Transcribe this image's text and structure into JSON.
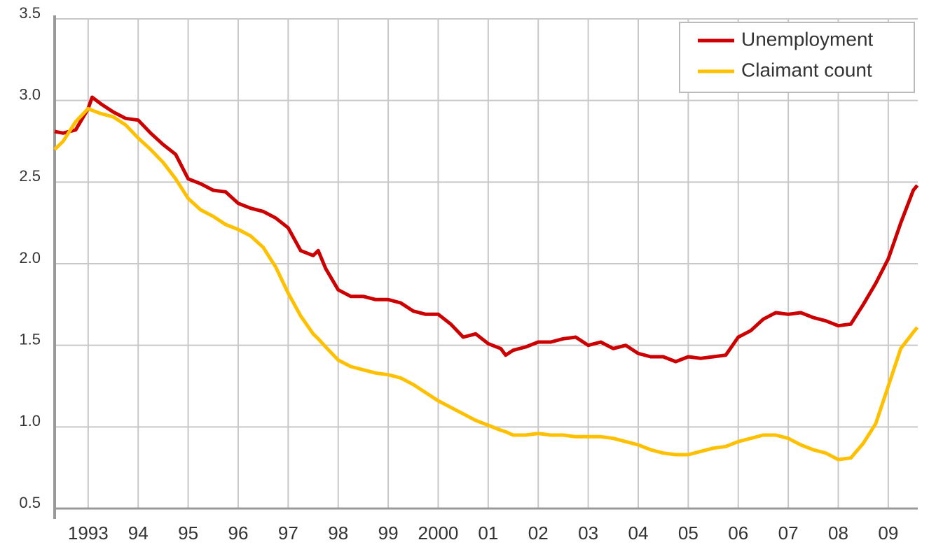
{
  "chart_data": {
    "type": "line",
    "x": [
      1992.33,
      1992.5,
      1992.75,
      1993,
      1993.08,
      1993.25,
      1993.5,
      1993.75,
      1994,
      1994.25,
      1994.5,
      1994.75,
      1995,
      1995.25,
      1995.5,
      1995.75,
      1996,
      1996.25,
      1996.5,
      1996.75,
      1997,
      1997.25,
      1997.5,
      1997.6,
      1997.75,
      1998,
      1998.25,
      1998.5,
      1998.75,
      1999,
      1999.25,
      1999.5,
      1999.75,
      2000,
      2000.25,
      2000.5,
      2000.75,
      2001,
      2001.25,
      2001.35,
      2001.5,
      2001.75,
      2002,
      2002.25,
      2002.5,
      2002.75,
      2003,
      2003.25,
      2003.5,
      2003.75,
      2004,
      2004.25,
      2004.5,
      2004.75,
      2005,
      2005.25,
      2005.5,
      2005.75,
      2006,
      2006.25,
      2006.5,
      2006.75,
      2007,
      2007.25,
      2007.5,
      2007.75,
      2008,
      2008.25,
      2008.5,
      2008.75,
      2009,
      2009.25,
      2009.5,
      2009.58
    ],
    "series": [
      {
        "name": "Unemployment",
        "color": "#cc0000",
        "values": [
          2.81,
          2.8,
          2.82,
          2.95,
          3.02,
          2.98,
          2.93,
          2.89,
          2.88,
          2.8,
          2.73,
          2.67,
          2.52,
          2.49,
          2.45,
          2.44,
          2.37,
          2.34,
          2.32,
          2.28,
          2.22,
          2.08,
          2.05,
          2.08,
          1.97,
          1.84,
          1.8,
          1.8,
          1.78,
          1.78,
          1.76,
          1.71,
          1.69,
          1.69,
          1.63,
          1.55,
          1.57,
          1.51,
          1.48,
          1.44,
          1.47,
          1.49,
          1.52,
          1.52,
          1.54,
          1.55,
          1.5,
          1.52,
          1.48,
          1.5,
          1.45,
          1.43,
          1.43,
          1.4,
          1.43,
          1.42,
          1.43,
          1.44,
          1.55,
          1.59,
          1.66,
          1.7,
          1.69,
          1.7,
          1.67,
          1.65,
          1.62,
          1.63,
          1.75,
          1.88,
          2.03,
          2.25,
          2.45,
          2.48
        ]
      },
      {
        "name": "Claimant count",
        "color": "#ffc000",
        "values": [
          2.7,
          2.75,
          2.87,
          2.95,
          2.94,
          2.92,
          2.9,
          2.85,
          2.77,
          2.7,
          2.62,
          2.52,
          2.4,
          2.33,
          2.29,
          2.24,
          2.21,
          2.17,
          2.1,
          1.98,
          1.82,
          1.68,
          1.57,
          1.54,
          1.49,
          1.41,
          1.37,
          1.35,
          1.33,
          1.32,
          1.3,
          1.26,
          1.21,
          1.16,
          1.12,
          1.08,
          1.04,
          1.01,
          0.98,
          0.97,
          0.95,
          0.95,
          0.96,
          0.95,
          0.95,
          0.94,
          0.94,
          0.94,
          0.93,
          0.91,
          0.89,
          0.86,
          0.84,
          0.83,
          0.83,
          0.85,
          0.87,
          0.88,
          0.91,
          0.93,
          0.95,
          0.95,
          0.93,
          0.89,
          0.86,
          0.84,
          0.8,
          0.81,
          0.9,
          1.02,
          1.25,
          1.48,
          1.58,
          1.61
        ]
      }
    ],
    "xlim": [
      1992.33,
      2009.59
    ],
    "xticks": [
      1993,
      {
        "value": 1994,
        "label": "94"
      },
      {
        "value": 1995,
        "label": "95"
      },
      {
        "value": 1996,
        "label": "96"
      },
      {
        "value": 1997,
        "label": "97"
      },
      {
        "value": 1998,
        "label": "98"
      },
      {
        "value": 1999,
        "label": "99"
      },
      2000,
      {
        "value": 2001,
        "label": "01"
      },
      {
        "value": 2002,
        "label": "02"
      },
      {
        "value": 2003,
        "label": "03"
      },
      {
        "value": 2004,
        "label": "04"
      },
      {
        "value": 2005,
        "label": "05"
      },
      {
        "value": 2006,
        "label": "06"
      },
      {
        "value": 2007,
        "label": "07"
      },
      {
        "value": 2008,
        "label": "08"
      },
      {
        "value": 2009,
        "label": "09"
      }
    ],
    "ylim": [
      0.5,
      3.5
    ],
    "yticks": [
      0.5,
      {
        "value": 1,
        "label": "1.0"
      },
      1.5,
      {
        "value": 2,
        "label": "2.0"
      },
      2.5,
      {
        "value": 3,
        "label": "3.0"
      },
      3.5
    ],
    "grid": true,
    "legend": "top-right"
  }
}
